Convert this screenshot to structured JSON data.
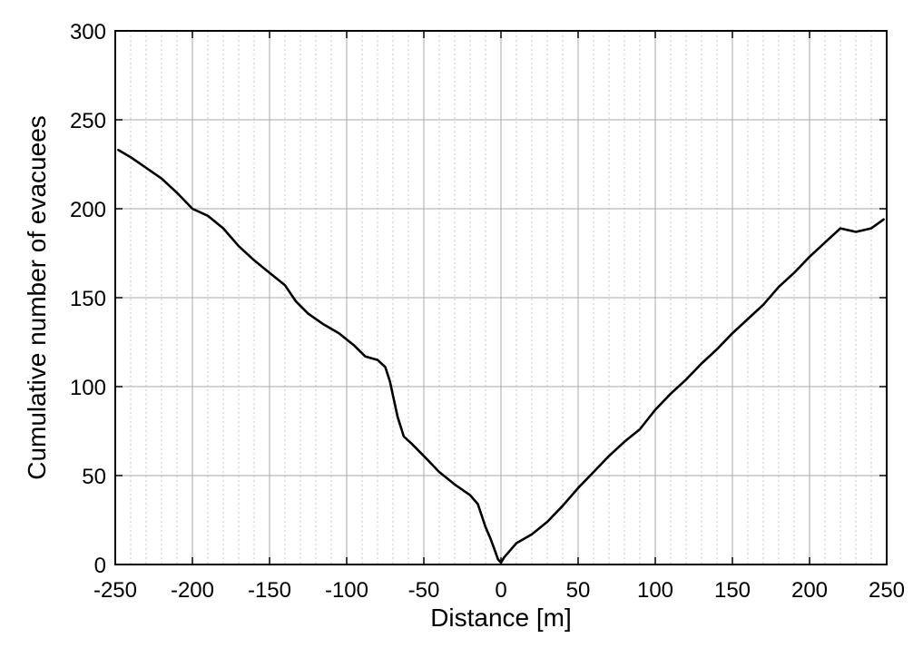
{
  "chart_data": {
    "type": "line",
    "title": "",
    "xlabel": "Distance [m]",
    "ylabel": "Cumulative number of evacuees",
    "xlim": [
      -250,
      250
    ],
    "ylim": [
      0,
      300
    ],
    "x_major_ticks": [
      -250,
      -200,
      -150,
      -100,
      -50,
      0,
      50,
      100,
      150,
      200,
      250
    ],
    "x_tick_labels": [
      "-250",
      "-200",
      "-150",
      "-100",
      "-50",
      "0",
      "50",
      "100",
      "150",
      "200",
      "250"
    ],
    "y_major_ticks": [
      0,
      50,
      100,
      150,
      200,
      250,
      300
    ],
    "y_tick_labels": [
      "0",
      "50",
      "100",
      "150",
      "200",
      "250",
      "300"
    ],
    "x_minor_step": 10,
    "grid": true,
    "legend": "none",
    "line_color": "#000000",
    "series": [
      {
        "x": [
          -248,
          -240,
          -230,
          -220,
          -210,
          -200,
          -190,
          -180,
          -170,
          -160,
          -150,
          -140,
          -133,
          -125,
          -115,
          -105,
          -95,
          -88,
          -80,
          -75,
          -72,
          -70,
          -67,
          -63,
          -58,
          -50,
          -40,
          -30,
          -20,
          -15,
          -10,
          -7,
          -4,
          -2,
          0,
          2,
          5,
          10,
          20,
          30,
          40,
          50,
          60,
          70,
          80,
          90,
          100,
          110,
          120,
          130,
          140,
          150,
          160,
          170,
          180,
          190,
          200,
          210,
          220,
          230,
          240,
          248
        ],
        "y": [
          233,
          229,
          223,
          217,
          209,
          200,
          196,
          189,
          179,
          171,
          164,
          157,
          148,
          141,
          135,
          130,
          123,
          117,
          115,
          111,
          103,
          95,
          83,
          72,
          68,
          61,
          52,
          45,
          39,
          34,
          21,
          15,
          8,
          3,
          1,
          4,
          7,
          12,
          17,
          24,
          33,
          43,
          52,
          61,
          69,
          76,
          87,
          96,
          104,
          113,
          121,
          130,
          138,
          146,
          156,
          164,
          173,
          181,
          189,
          187,
          189,
          194
        ]
      }
    ]
  }
}
